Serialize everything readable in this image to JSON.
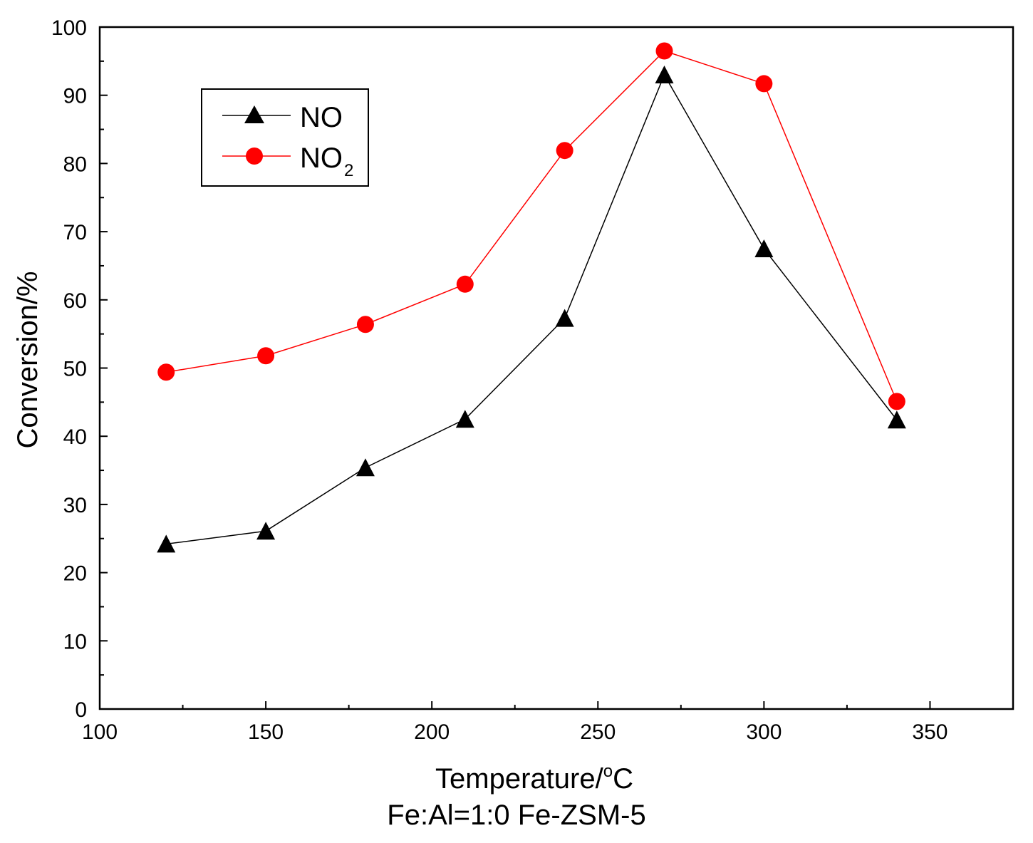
{
  "chart_data": {
    "type": "line",
    "title": "",
    "xlabel": "Temperature/",
    "xlabel_sup": "o",
    "xlabel_suffix": "C",
    "ylabel": "Conversion/%",
    "xlim": [
      100,
      375
    ],
    "ylim": [
      0,
      100
    ],
    "x_ticks": [
      100,
      150,
      200,
      250,
      300,
      350
    ],
    "y_ticks": [
      0,
      10,
      20,
      30,
      40,
      50,
      60,
      70,
      80,
      90,
      100
    ],
    "x_minor_ticks": [
      125,
      175,
      225,
      275,
      325
    ],
    "y_minor_ticks": [
      5,
      15,
      25,
      35,
      45,
      55,
      65,
      75,
      85,
      95
    ],
    "legend_position": "top-left",
    "series": [
      {
        "name": "NO",
        "legend_label": "NO",
        "legend_sub": "",
        "color": "#000000",
        "marker": "triangle",
        "x": [
          120,
          150,
          180,
          210,
          240,
          270,
          300,
          340
        ],
        "y": [
          24.2,
          26.1,
          35.4,
          42.5,
          57.3,
          93.0,
          67.5,
          42.4
        ]
      },
      {
        "name": "NO2",
        "legend_label": "NO",
        "legend_sub": "2",
        "color": "#ff0000",
        "marker": "circle",
        "x": [
          120,
          150,
          180,
          210,
          240,
          270,
          300,
          340
        ],
        "y": [
          49.4,
          51.8,
          56.4,
          62.3,
          81.9,
          96.5,
          91.7,
          45.1
        ]
      }
    ]
  },
  "caption": "Fe:Al=1:0 Fe-ZSM-5"
}
